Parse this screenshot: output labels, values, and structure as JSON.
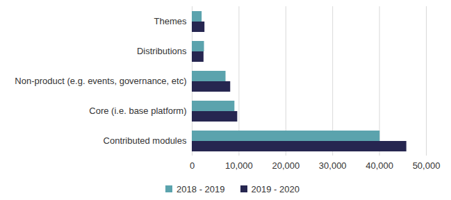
{
  "chart_data": {
    "type": "bar",
    "orientation": "horizontal",
    "grid": true,
    "legend": "bottom",
    "categories": [
      "Themes",
      "Distributions",
      "Non-product (e.g. events, governance, etc)",
      "Core (i.e. base platform)",
      "Contributed modules"
    ],
    "series": [
      {
        "name": "2018 - 2019",
        "color": "#5ba3ad",
        "values": [
          2100,
          2600,
          7200,
          9100,
          40100
        ]
      },
      {
        "name": "2019 - 2020",
        "color": "#262650",
        "values": [
          2700,
          2500,
          8200,
          9700,
          45800
        ]
      }
    ],
    "xlim": [
      0,
      50000
    ],
    "xticks": [
      0,
      {
        "value": 10000,
        "label": "10,000"
      },
      {
        "value": 20000,
        "label": "20,000"
      },
      {
        "value": 30000,
        "label": "30,000"
      },
      {
        "value": 40000,
        "label": "40,000"
      },
      {
        "value": 50000,
        "label": "50,000"
      }
    ]
  }
}
